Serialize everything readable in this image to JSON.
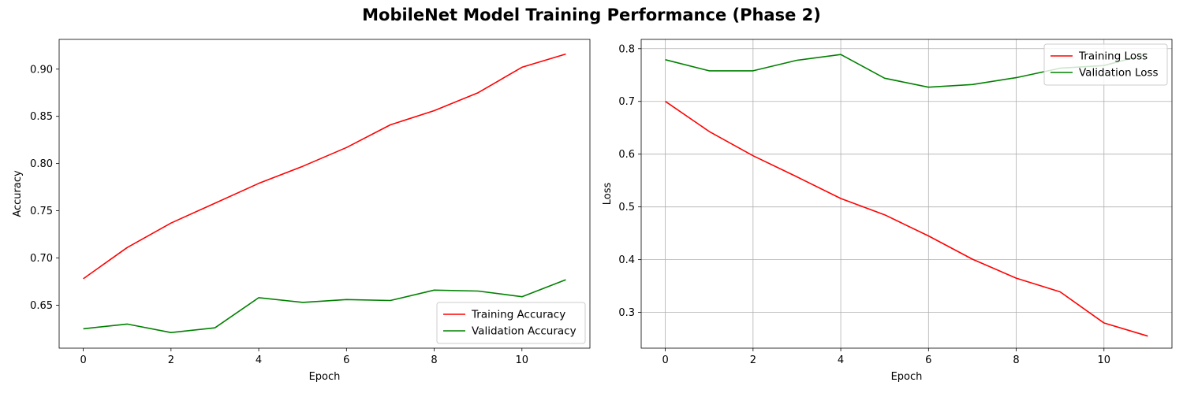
{
  "figure": {
    "suptitle": "MobileNet Model Training Performance (Phase 2)"
  },
  "chart_data": [
    {
      "type": "line",
      "xlabel": "Epoch",
      "ylabel": "Accuracy",
      "x": [
        0,
        1,
        2,
        3,
        4,
        5,
        6,
        7,
        8,
        9,
        10,
        11
      ],
      "xlim": [
        -0.55,
        11.55
      ],
      "ylim": [
        0.6045,
        0.9315
      ],
      "xticks": [
        0,
        2,
        4,
        6,
        8,
        10
      ],
      "yticks": [
        0.65,
        0.7,
        0.75,
        0.8,
        0.85,
        0.9
      ],
      "grid": false,
      "legend": "lower-right",
      "series": [
        {
          "name": "Training Accuracy",
          "color": "#ff0000",
          "values": [
            0.678,
            0.711,
            0.737,
            0.758,
            0.779,
            0.797,
            0.817,
            0.841,
            0.856,
            0.875,
            0.902,
            0.916
          ]
        },
        {
          "name": "Validation Accuracy",
          "color": "#008000",
          "values": [
            0.625,
            0.63,
            0.621,
            0.626,
            0.658,
            0.653,
            0.656,
            0.655,
            0.666,
            0.665,
            0.659,
            0.677
          ]
        }
      ]
    },
    {
      "type": "line",
      "xlabel": "Epoch",
      "ylabel": "Loss",
      "x": [
        0,
        1,
        2,
        3,
        4,
        5,
        6,
        7,
        8,
        9,
        10,
        11
      ],
      "xlim": [
        -0.55,
        11.55
      ],
      "ylim": [
        0.2322,
        0.8176
      ],
      "xticks": [
        0,
        2,
        4,
        6,
        8,
        10
      ],
      "yticks": [
        0.3,
        0.4,
        0.5,
        0.6,
        0.7,
        0.8
      ],
      "grid": true,
      "legend": "top-right",
      "series": [
        {
          "name": "Training Loss",
          "color": "#ff0000",
          "values": [
            0.7,
            0.643,
            0.597,
            0.557,
            0.516,
            0.485,
            0.445,
            0.401,
            0.365,
            0.339,
            0.28,
            0.255
          ]
        },
        {
          "name": "Validation Loss",
          "color": "#008000",
          "values": [
            0.779,
            0.758,
            0.758,
            0.778,
            0.789,
            0.744,
            0.727,
            0.732,
            0.745,
            0.763,
            0.768,
            0.79
          ]
        }
      ]
    }
  ]
}
